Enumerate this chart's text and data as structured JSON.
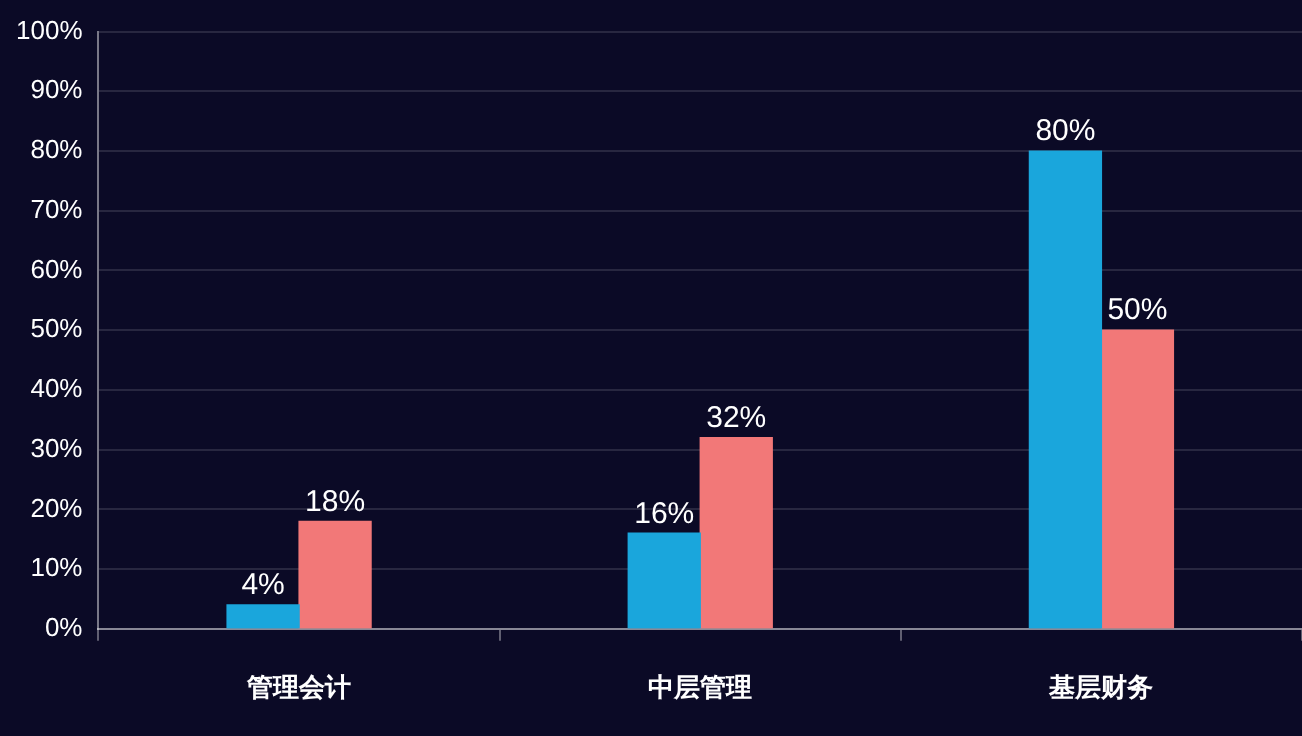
{
  "chart_data": {
    "type": "bar",
    "categories": [
      "管理会计",
      "中层管理",
      "基层财务"
    ],
    "series": [
      {
        "color": "#1aa6dc",
        "values": [
          4,
          16,
          80
        ],
        "value_labels": [
          "4%",
          "16%",
          "80%"
        ]
      },
      {
        "color": "#f27878",
        "values": [
          18,
          32,
          50
        ],
        "value_labels": [
          "18%",
          "32%",
          "50%"
        ]
      }
    ],
    "ylim": [
      0,
      100
    ],
    "yticks": [
      {
        "value": 0,
        "label": "0%"
      },
      {
        "value": 10,
        "label": "10%"
      },
      {
        "value": 20,
        "label": "20%"
      },
      {
        "value": 30,
        "label": "30%"
      },
      {
        "value": 40,
        "label": "40%"
      },
      {
        "value": 50,
        "label": "50%"
      },
      {
        "value": 60,
        "label": "60%"
      },
      {
        "value": 70,
        "label": "70%"
      },
      {
        "value": 80,
        "label": "80%"
      },
      {
        "value": 90,
        "label": "90%"
      },
      {
        "value": 100,
        "label": "100%"
      }
    ],
    "grid": "y",
    "legend": false
  }
}
